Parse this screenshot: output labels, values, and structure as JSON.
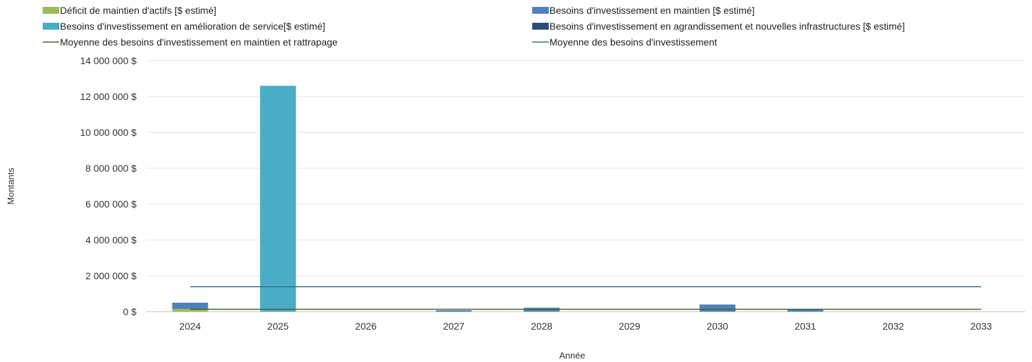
{
  "chart_data": {
    "type": "bar",
    "stacked": true,
    "xlabel": "Année",
    "ylabel": "Montants",
    "ylim": [
      0,
      14000000
    ],
    "y_ticks": [
      0,
      2000000,
      4000000,
      6000000,
      8000000,
      10000000,
      12000000,
      14000000
    ],
    "y_tick_labels": [
      "0 $",
      "2 000 000 $",
      "4 000 000 $",
      "6 000 000 $",
      "8 000 000 $",
      "10 000 000 $",
      "12 000 000 $",
      "14 000 000 $"
    ],
    "categories": [
      "2024",
      "2025",
      "2026",
      "2027",
      "2028",
      "2029",
      "2030",
      "2031",
      "2032",
      "2033"
    ],
    "grid": true,
    "legend_position": "top",
    "series": [
      {
        "name": "Déficit de maintien d'actifs [$ estimé]",
        "type": "bar",
        "color": "#9bbb59",
        "values": [
          150000,
          0,
          0,
          0,
          0,
          0,
          0,
          0,
          0,
          0
        ]
      },
      {
        "name": "Besoins d'investissement en maintien [$ estimé]",
        "type": "bar",
        "color": "#4f81bd",
        "values": [
          350000,
          0,
          0,
          80000,
          220000,
          0,
          400000,
          150000,
          0,
          0
        ]
      },
      {
        "name": "Besoins d'investissement en amélioration de service[$ estimé]",
        "type": "bar",
        "color": "#4bacc6",
        "values": [
          0,
          12600000,
          0,
          0,
          0,
          0,
          0,
          0,
          0,
          0
        ]
      },
      {
        "name": "Besoins d'investissement en agrandissement et nouvelles infrastructures [$ estimé]",
        "type": "bar",
        "color": "#2c4d75",
        "values": [
          0,
          0,
          0,
          0,
          0,
          0,
          0,
          0,
          0,
          0
        ]
      },
      {
        "name": "Moyenne des besoins d'investissement en maintien et rattrapage",
        "type": "line",
        "color": "#4f6228",
        "values": [
          135000,
          135000,
          135000,
          135000,
          135000,
          135000,
          135000,
          135000,
          135000,
          135000
        ]
      },
      {
        "name": "Moyenne des besoins d'investissement",
        "type": "line",
        "color": "#31708a",
        "values": [
          1395000,
          1395000,
          1395000,
          1395000,
          1395000,
          1395000,
          1395000,
          1395000,
          1395000,
          1395000
        ]
      }
    ]
  }
}
